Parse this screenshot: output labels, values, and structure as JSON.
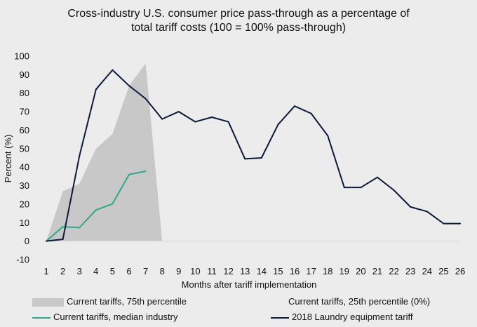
{
  "chart_data": {
    "type": "line",
    "title_line1": "Cross-industry U.S. consumer price pass-through as a percentage of",
    "title_line2": "total tariff costs (100 = 100% pass-through)",
    "xlabel": "Months after tariff implementation",
    "ylabel": "Percent (%)",
    "ylim": [
      -10,
      100
    ],
    "y_ticks": [
      -10,
      0,
      10,
      20,
      30,
      40,
      50,
      60,
      70,
      80,
      90,
      100
    ],
    "x_ticks": [
      1,
      2,
      3,
      4,
      5,
      6,
      7,
      8,
      9,
      10,
      11,
      12,
      13,
      14,
      15,
      16,
      17,
      18,
      19,
      20,
      21,
      22,
      23,
      24,
      25,
      26
    ],
    "series": [
      {
        "name": "Current tariffs, 75th percentile",
        "kind": "area",
        "color": "#c8c8c8",
        "x": [
          1,
          2,
          3,
          4,
          5,
          6,
          7,
          8
        ],
        "values": [
          0,
          27,
          31,
          50,
          58,
          84,
          96,
          0
        ]
      },
      {
        "name": "Current tariffs, 25th percentile (0%)",
        "kind": "area",
        "color": "#ececec",
        "x": [
          1,
          2,
          3,
          4,
          5,
          6,
          7,
          8
        ],
        "values": [
          0,
          0,
          0,
          0,
          0,
          0,
          0,
          0
        ]
      },
      {
        "name": "Current tariffs, median industry",
        "kind": "line",
        "color": "#2eaa8a",
        "x": [
          1,
          2,
          3,
          4,
          5,
          6,
          7
        ],
        "values": [
          0,
          7.8,
          7.3,
          16.8,
          20.2,
          36,
          37.8
        ]
      },
      {
        "name": "2018 Laundry equipment tariff",
        "kind": "line",
        "color": "#0e1a3a",
        "x": [
          1,
          2,
          3,
          4,
          5,
          6,
          7,
          8,
          9,
          10,
          11,
          12,
          13,
          14,
          15,
          16,
          17,
          18,
          19,
          20,
          21,
          22,
          23,
          24,
          25,
          26
        ],
        "values": [
          0,
          1,
          46,
          82,
          92.5,
          84,
          77,
          66,
          70,
          64.5,
          67,
          64.5,
          44.5,
          45,
          63,
          73,
          69,
          57,
          29,
          29,
          34.5,
          27.5,
          18.5,
          16,
          9.5,
          9.5
        ]
      }
    ],
    "legend": {
      "fill_75": "Current tariffs, 75th percentile",
      "fill_25": "Current tariffs, 25th percentile (0%)",
      "median": "Current tariffs, median industry",
      "laundry": "2018 Laundry equipment tariff"
    }
  }
}
